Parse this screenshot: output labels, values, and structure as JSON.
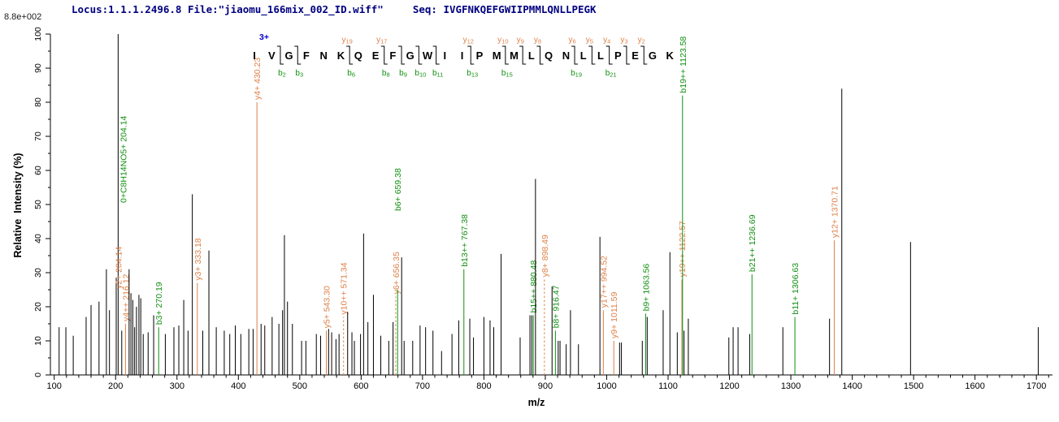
{
  "header": {
    "locus_file": "Locus:1.1.1.2496.8 File:\"jiaomu_166mix_002_ID.wiff\"",
    "seq_label": "Seq: IVGFNKQEFGWIIPMMLQNLLPEGK"
  },
  "colors": {
    "y_ion": "#DE8148",
    "b_ion": "#129012",
    "peak": "#000000",
    "header_text": "#000080",
    "charge_state": "#0000CD",
    "axis": "#000000"
  },
  "peptide": {
    "charge": "3+",
    "residues": [
      "I",
      "V",
      "G",
      "F",
      "N",
      "K",
      "Q",
      "E",
      "F",
      "G",
      "W",
      "I",
      "I",
      "P",
      "M",
      "M",
      "L",
      "Q",
      "N",
      "L",
      "L",
      "P",
      "E",
      "G",
      "K"
    ],
    "cleavages": [
      {
        "after": 2,
        "b": "b2"
      },
      {
        "after": 3,
        "b": "b3"
      },
      {
        "after": 6,
        "b": "b6",
        "y": "y19"
      },
      {
        "after": 8,
        "b": "b8",
        "y": "y17"
      },
      {
        "after": 9,
        "b": "b9"
      },
      {
        "after": 10,
        "b": "b10"
      },
      {
        "after": 11,
        "b": "b11"
      },
      {
        "after": 13,
        "b": "b13",
        "y": "y12"
      },
      {
        "after": 15,
        "b": "b15",
        "y": "y10"
      },
      {
        "after": 16,
        "y": "y9"
      },
      {
        "after": 17,
        "y": "y8"
      },
      {
        "after": 19,
        "b": "b19",
        "y": "y6"
      },
      {
        "after": 20,
        "y": "y5"
      },
      {
        "after": 21,
        "b": "b21",
        "y": "y4"
      },
      {
        "after": 22,
        "y": "y3"
      },
      {
        "after": 23,
        "y": "y2"
      }
    ]
  },
  "chart_data": {
    "type": "bar",
    "subtype": "mass-spectrum-stick-plot",
    "xlabel": "m/z",
    "ylabel": "Relative  Intensity (%)",
    "exponent": "8.8e+002",
    "xlim": [
      94,
      1726
    ],
    "ylim": [
      0,
      100
    ],
    "x_major_ticks": [
      100,
      200,
      300,
      400,
      500,
      600,
      700,
      800,
      900,
      1000,
      1100,
      1200,
      1300,
      1400,
      1500,
      1600,
      1700
    ],
    "x_minor_step": 20,
    "y_major_ticks": [
      0,
      10,
      20,
      30,
      40,
      50,
      60,
      70,
      80,
      90,
      100
    ],
    "y_minor_step": 5,
    "grid": false,
    "peaks": [
      {
        "mz": 108,
        "i": 14
      },
      {
        "mz": 119,
        "i": 14
      },
      {
        "mz": 131,
        "i": 11.5
      },
      {
        "mz": 152,
        "i": 17
      },
      {
        "mz": 160,
        "i": 20.5
      },
      {
        "mz": 173,
        "i": 21.5
      },
      {
        "mz": 185,
        "i": 31
      },
      {
        "mz": 190,
        "i": 19
      },
      {
        "mz": 201,
        "i": 28.5
      },
      {
        "mz": 204.14,
        "i": 100,
        "labels": [
          {
            "text": "y2+ 204.14",
            "ion": "y",
            "bottom": 356
          },
          {
            "text": "0+C8H14NO5+ 204.14",
            "ion": "b",
            "bottom": 250,
            "dx": 6
          }
        ]
      },
      {
        "mz": 210,
        "i": 13
      },
      {
        "mz": 216.12,
        "i": 15,
        "ion": "y",
        "label": "y4++ 216.12"
      },
      {
        "mz": 222,
        "i": 31
      },
      {
        "mz": 225,
        "i": 24
      },
      {
        "mz": 228,
        "i": 22
      },
      {
        "mz": 231,
        "i": 14
      },
      {
        "mz": 234,
        "i": 20
      },
      {
        "mz": 238,
        "i": 23.5
      },
      {
        "mz": 241,
        "i": 22.5
      },
      {
        "mz": 245,
        "i": 12
      },
      {
        "mz": 253,
        "i": 12.5
      },
      {
        "mz": 262,
        "i": 17.5
      },
      {
        "mz": 270.19,
        "i": 14,
        "ion": "b",
        "label": "b3+ 270.19"
      },
      {
        "mz": 281,
        "i": 12
      },
      {
        "mz": 295,
        "i": 14
      },
      {
        "mz": 303,
        "i": 14.5
      },
      {
        "mz": 311,
        "i": 22
      },
      {
        "mz": 318,
        "i": 13
      },
      {
        "mz": 325,
        "i": 53
      },
      {
        "mz": 333.18,
        "i": 27,
        "ion": "y",
        "label": "y3+ 333.18"
      },
      {
        "mz": 342,
        "i": 13
      },
      {
        "mz": 352,
        "i": 36.5
      },
      {
        "mz": 364,
        "i": 14
      },
      {
        "mz": 377,
        "i": 13
      },
      {
        "mz": 386,
        "i": 12
      },
      {
        "mz": 395,
        "i": 14.5
      },
      {
        "mz": 404,
        "i": 12
      },
      {
        "mz": 417,
        "i": 13.5
      },
      {
        "mz": 424,
        "i": 13.5
      },
      {
        "mz": 430.23,
        "i": 80,
        "ion": "y",
        "label": "y4+ 430.23"
      },
      {
        "mz": 437,
        "i": 15
      },
      {
        "mz": 443,
        "i": 14.5
      },
      {
        "mz": 455,
        "i": 17
      },
      {
        "mz": 466,
        "i": 15
      },
      {
        "mz": 472,
        "i": 19
      },
      {
        "mz": 475,
        "i": 41
      },
      {
        "mz": 480,
        "i": 21.5
      },
      {
        "mz": 488,
        "i": 15
      },
      {
        "mz": 503,
        "i": 10
      },
      {
        "mz": 510,
        "i": 10
      },
      {
        "mz": 527,
        "i": 12
      },
      {
        "mz": 534,
        "i": 11.5
      },
      {
        "mz": 543.3,
        "i": 13,
        "ion": "y",
        "label": "y5+ 543.30"
      },
      {
        "mz": 547,
        "i": 13.5
      },
      {
        "mz": 552,
        "i": 12.5
      },
      {
        "mz": 559,
        "i": 10.5
      },
      {
        "mz": 564,
        "i": 12
      },
      {
        "mz": 571.34,
        "i": 17,
        "ion": "y",
        "dash": true,
        "label": "y10++ 571.34"
      },
      {
        "mz": 578,
        "i": 18.5
      },
      {
        "mz": 585,
        "i": 12.5
      },
      {
        "mz": 589,
        "i": 10
      },
      {
        "mz": 599,
        "i": 12
      },
      {
        "mz": 604,
        "i": 41.5
      },
      {
        "mz": 611,
        "i": 15.5
      },
      {
        "mz": 620,
        "i": 23.5
      },
      {
        "mz": 632,
        "i": 11.5
      },
      {
        "mz": 645,
        "i": 10
      },
      {
        "mz": 652,
        "i": 15.5
      },
      {
        "mz": 656.35,
        "i": 23,
        "ion": "y",
        "dash": true,
        "label": "y6+ 656.35"
      },
      {
        "mz": 659.38,
        "i": 25,
        "ion": "b",
        "label": "b6+ 659.38",
        "label_bottom": 260
      },
      {
        "mz": 666,
        "i": 34.5
      },
      {
        "mz": 670,
        "i": 10
      },
      {
        "mz": 684,
        "i": 10
      },
      {
        "mz": 696,
        "i": 14.5
      },
      {
        "mz": 705,
        "i": 14
      },
      {
        "mz": 717,
        "i": 13
      },
      {
        "mz": 731,
        "i": 7
      },
      {
        "mz": 748,
        "i": 12
      },
      {
        "mz": 759,
        "i": 16
      },
      {
        "mz": 767.38,
        "i": 31,
        "ion": "b",
        "label": "b13++ 767.38"
      },
      {
        "mz": 777,
        "i": 16.5
      },
      {
        "mz": 783,
        "i": 11
      },
      {
        "mz": 800,
        "i": 17
      },
      {
        "mz": 810,
        "i": 16
      },
      {
        "mz": 816,
        "i": 14
      },
      {
        "mz": 828,
        "i": 35.5
      },
      {
        "mz": 859,
        "i": 11
      },
      {
        "mz": 875,
        "i": 17.5
      },
      {
        "mz": 878,
        "i": 17.5
      },
      {
        "mz": 880.48,
        "i": 17.5,
        "ion": "b",
        "label": "b15++ 880.48"
      },
      {
        "mz": 884,
        "i": 57.5
      },
      {
        "mz": 898.49,
        "i": 28,
        "ion": "y",
        "dash": true,
        "label": "y8+ 898.49"
      },
      {
        "mz": 911,
        "i": 26
      },
      {
        "mz": 916.47,
        "i": 13,
        "ion": "b",
        "label": "b8+ 916.47"
      },
      {
        "mz": 921,
        "i": 10
      },
      {
        "mz": 924,
        "i": 10
      },
      {
        "mz": 934,
        "i": 9
      },
      {
        "mz": 941,
        "i": 19
      },
      {
        "mz": 954,
        "i": 9
      },
      {
        "mz": 989,
        "i": 40.5
      },
      {
        "mz": 994.52,
        "i": 19,
        "ion": "y",
        "label": "y17++ 994.52"
      },
      {
        "mz": 1011.59,
        "i": 10,
        "ion": "y",
        "label": "y9+ 1011.59"
      },
      {
        "mz": 1021,
        "i": 9.5
      },
      {
        "mz": 1024,
        "i": 9.5
      },
      {
        "mz": 1058,
        "i": 10
      },
      {
        "mz": 1063.56,
        "i": 18,
        "ion": "b",
        "label": "b9+ 1063.56"
      },
      {
        "mz": 1066,
        "i": 17
      },
      {
        "mz": 1092,
        "i": 19
      },
      {
        "mz": 1103,
        "i": 36
      },
      {
        "mz": 1115,
        "i": 12.5
      },
      {
        "mz": 1122.57,
        "i": 28,
        "ion": "y",
        "label": "y19++ 1122.57"
      },
      {
        "mz": 1123.58,
        "i": 82,
        "ion": "b",
        "label": "b19++ 1123.58"
      },
      {
        "mz": 1126,
        "i": 13
      },
      {
        "mz": 1133,
        "i": 16.5
      },
      {
        "mz": 1199,
        "i": 11
      },
      {
        "mz": 1206,
        "i": 14
      },
      {
        "mz": 1214,
        "i": 14
      },
      {
        "mz": 1233,
        "i": 12
      },
      {
        "mz": 1236.69,
        "i": 29.5,
        "ion": "b",
        "label": "b21++ 1236.69"
      },
      {
        "mz": 1287,
        "i": 14
      },
      {
        "mz": 1306.63,
        "i": 17,
        "ion": "b",
        "label": "b11+ 1306.63"
      },
      {
        "mz": 1363,
        "i": 16.5
      },
      {
        "mz": 1370.71,
        "i": 39.5,
        "ion": "y",
        "label": "y12+ 1370.71"
      },
      {
        "mz": 1383,
        "i": 84
      },
      {
        "mz": 1495,
        "i": 39
      },
      {
        "mz": 1703,
        "i": 14
      }
    ]
  }
}
